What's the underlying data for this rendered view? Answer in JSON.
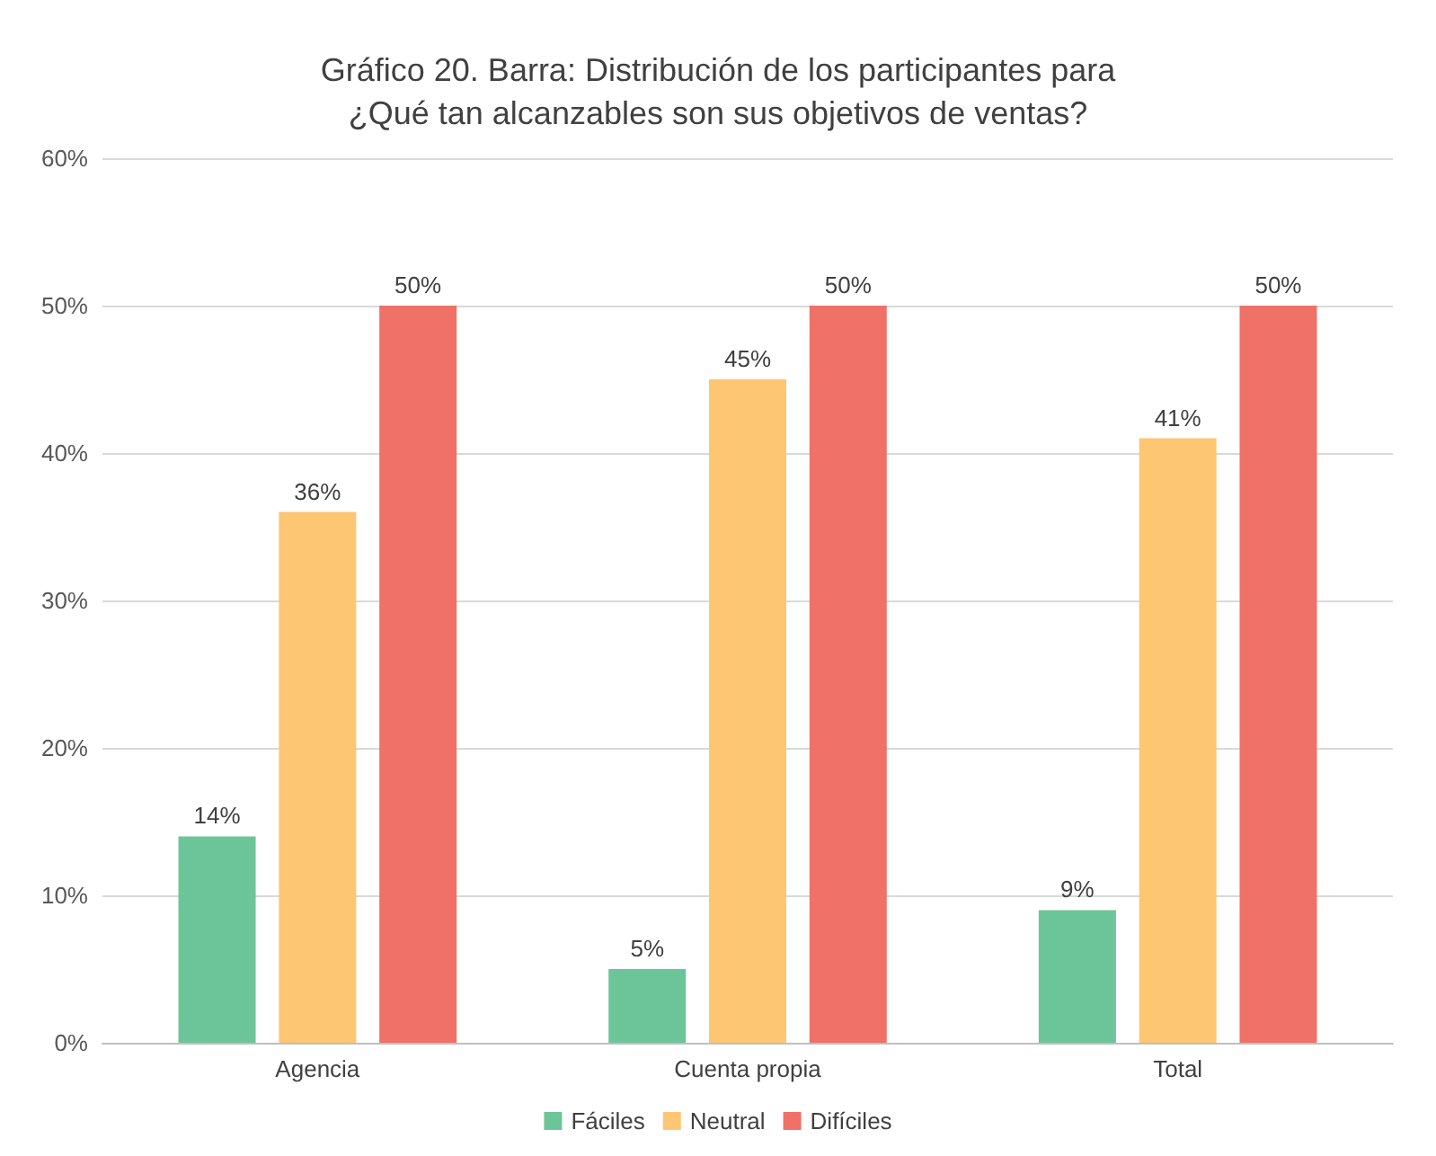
{
  "chart_data": {
    "type": "bar",
    "title": "Gráfico 20. Barra: Distribución de los participantes para\n¿Qué tan alcanzables son sus objetivos de ventas?",
    "categories": [
      "Agencia",
      "Cuenta propia",
      "Total"
    ],
    "series": [
      {
        "name": "Fáciles",
        "color": "#6cc598",
        "values": [
          14,
          5,
          9
        ],
        "value_labels": [
          "14%",
          "5%",
          "9%"
        ]
      },
      {
        "name": "Neutral",
        "color": "#fdc673",
        "values": [
          36,
          45,
          41
        ],
        "value_labels": [
          "36%",
          "45%",
          "41%"
        ]
      },
      {
        "name": "Difíciles",
        "color": "#f07167",
        "values": [
          50,
          50,
          50
        ],
        "value_labels": [
          "50%",
          "50%",
          "50%"
        ]
      }
    ],
    "ylim": [
      0,
      60
    ],
    "yticks": [
      {
        "value": 0,
        "label": "0%"
      },
      {
        "value": 10,
        "label": "10%"
      },
      {
        "value": 20,
        "label": "20%"
      },
      {
        "value": 30,
        "label": "30%"
      },
      {
        "value": 40,
        "label": "40%"
      },
      {
        "value": 50,
        "label": "50%"
      },
      {
        "value": 60,
        "label": "60%"
      }
    ],
    "grid": "y",
    "legend": "bottom"
  }
}
